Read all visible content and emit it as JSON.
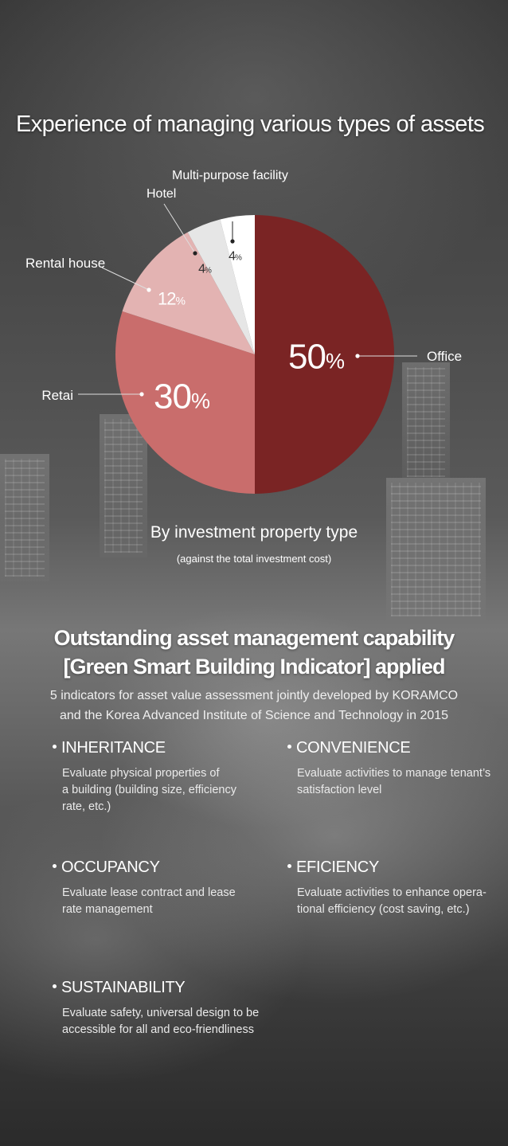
{
  "title": "Experience of managing various types of assets",
  "chart_data": {
    "type": "pie",
    "slices": [
      {
        "label": "Office",
        "value": 50,
        "color": "#7a2424"
      },
      {
        "label": "Retai",
        "value": 30,
        "color": "#c96d6c"
      },
      {
        "label": "Rental house",
        "value": 12,
        "color": "#e3b3b2"
      },
      {
        "label": "Hotel",
        "value": 4,
        "color": "#e6e6e6"
      },
      {
        "label": "Multi-purpose facility",
        "value": 4,
        "color": "#ffffff"
      }
    ],
    "value_suffix": "%",
    "caption": "By investment property type",
    "subcaption": "(against the total investment cost)"
  },
  "section": {
    "title_line1": "Outstanding asset management capability",
    "title_line2": "[Green Smart Building Indicator] applied",
    "desc_line1": "5 indicators for asset value assessment jointly developed by KORAMCO",
    "desc_line2": "and the Korea Advanced Institute of Science and Technology in 2015"
  },
  "indicators": [
    {
      "name": "INHERITANCE",
      "lines": [
        "Evaluate physical properties of",
        "a building (building size, efficiency",
        "rate, etc.)"
      ]
    },
    {
      "name": "CONVENIENCE",
      "lines": [
        "Evaluate activities to manage tenant’s",
        "satisfaction level"
      ]
    },
    {
      "name": "OCCUPANCY",
      "lines": [
        "Evaluate lease contract and lease",
        "rate management"
      ]
    },
    {
      "name": "EFICIENCY",
      "lines": [
        "Evaluate activities to enhance opera-",
        "tional efficiency (cost saving, etc.)"
      ]
    },
    {
      "name": "SUSTAINABILITY",
      "lines": [
        "Evaluate safety, universal design to be",
        "accessible for all and eco-friendliness"
      ]
    }
  ]
}
